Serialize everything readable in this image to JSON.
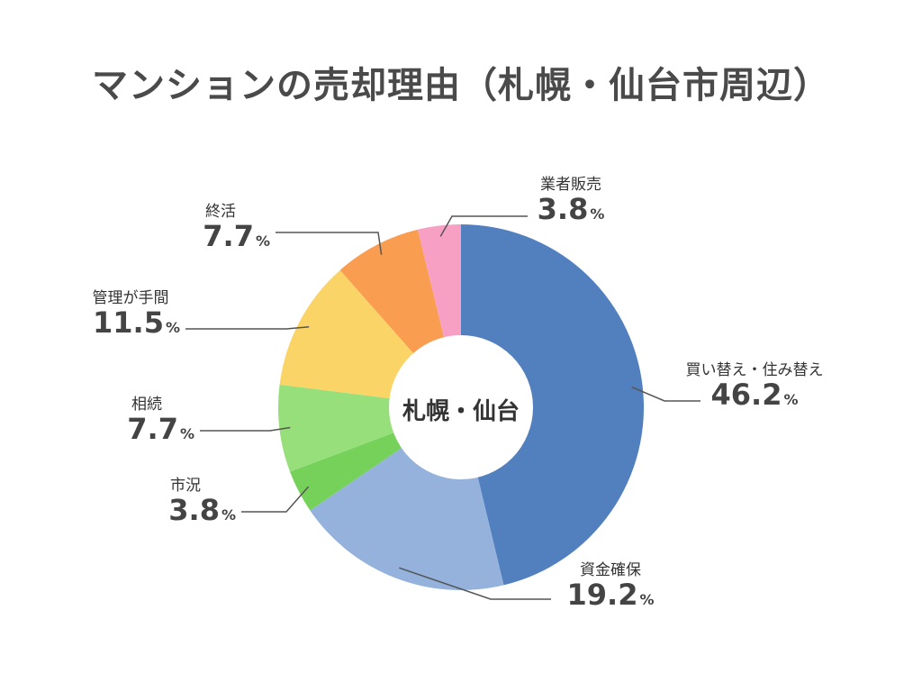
{
  "chart_data": {
    "type": "pie",
    "title": "マンションの売却理由（札幌・仙台市周辺）",
    "center_label": "札幌・仙台",
    "unit": "%",
    "categories": [
      "買い替え・住み替え",
      "資金確保",
      "市況",
      "相続",
      "管理が手間",
      "終活",
      "業者販売"
    ],
    "values": [
      46.2,
      19.2,
      3.8,
      7.7,
      11.5,
      7.7,
      3.8
    ],
    "value_labels": [
      "46.2",
      "19.2",
      "3.8",
      "7.7",
      "11.5",
      "7.7",
      "3.8"
    ],
    "colors": [
      "#5280bf",
      "#94b2dc",
      "#76d15a",
      "#97df7b",
      "#fad467",
      "#f99d50",
      "#f7a0c4"
    ],
    "legend": "none"
  }
}
